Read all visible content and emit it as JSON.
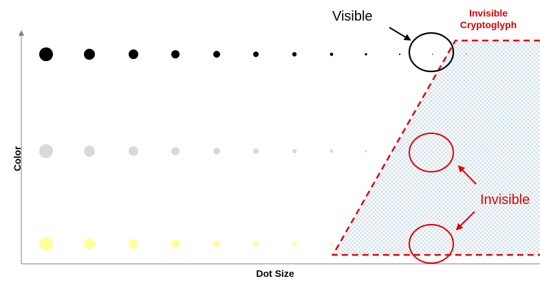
{
  "axes": {
    "x_label": "Dot Size",
    "y_label": "Color"
  },
  "annotations": {
    "visible": "Visible",
    "invisible_cryptoglyph": [
      "Invisible",
      "Cryptoglyph"
    ],
    "invisible": "Invisible"
  },
  "rows": [
    {
      "name": "black",
      "color": "#000000",
      "dot_count": 12
    },
    {
      "name": "gray",
      "color": "#d9d9d9",
      "dot_count": 10
    },
    {
      "name": "yellow",
      "color": "#ffff99",
      "dot_count": 9
    }
  ],
  "colors": {
    "axis": "#7f7f7f",
    "highlight": "#e00000",
    "visible_circle": "#000000",
    "hatch": "#b8cfe0"
  }
}
